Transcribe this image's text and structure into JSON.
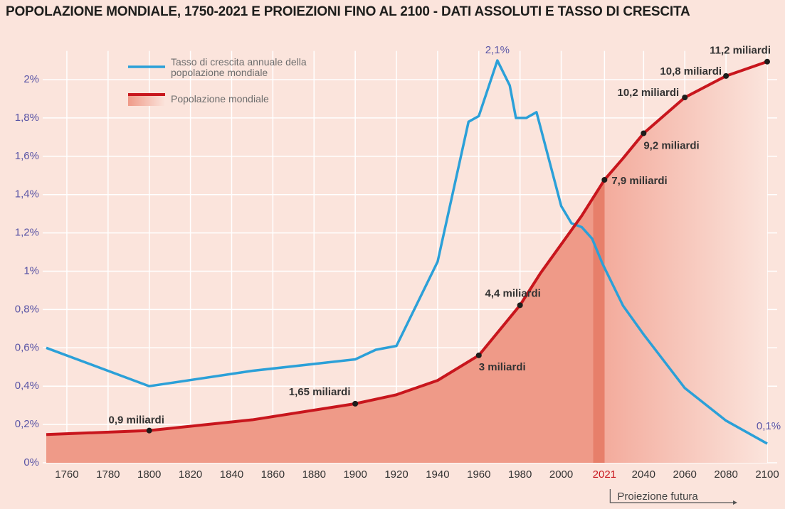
{
  "chart_data": {
    "type": "line",
    "title": "POPOLAZIONE MONDIALE, 1750-2021 E PROIEZIONI FINO AL 2100 - DATI ASSOLUTI E TASSO DI CRESCITA",
    "xlim": [
      1750,
      2100
    ],
    "xticks": [
      1760,
      1780,
      1800,
      1820,
      1840,
      1860,
      1880,
      1900,
      1920,
      1940,
      1960,
      1980,
      2000,
      2021,
      2040,
      2060,
      2080,
      2100
    ],
    "ylim": [
      0,
      2.15
    ],
    "yticks": [
      {
        "value": 0,
        "label": "0%"
      },
      {
        "value": 0.2,
        "label": "0,2%"
      },
      {
        "value": 0.4,
        "label": "0,4%"
      },
      {
        "value": 0.6,
        "label": "0,6%"
      },
      {
        "value": 0.8,
        "label": "0,8%"
      },
      {
        "value": 1,
        "label": "1%"
      },
      {
        "value": 1.2,
        "label": "1,2%"
      },
      {
        "value": 1.4,
        "label": "1,4%"
      },
      {
        "value": 1.6,
        "label": "1,6%"
      },
      {
        "value": 1.8,
        "label": "1,8%"
      },
      {
        "value": 2,
        "label": "2%"
      }
    ],
    "y2lim": [
      0,
      11.5
    ],
    "grid": true,
    "legend": "top-left",
    "projection": {
      "label": "Proiezione futura",
      "from": 2021
    },
    "series": [
      {
        "name": "Tasso di crescita annuale della popolazione mondiale",
        "color": "#2ba0d8",
        "x": [
          1750,
          1800,
          1850,
          1900,
          1910,
          1920,
          1940,
          1955,
          1960,
          1969,
          1975,
          1978,
          1983,
          1988,
          2000,
          2005,
          2010,
          2015,
          2020,
          2030,
          2040,
          2060,
          2080,
          2100
        ],
        "values": [
          0.6,
          0.4,
          0.48,
          0.54,
          0.59,
          0.61,
          1.05,
          1.78,
          1.81,
          2.1,
          1.97,
          1.8,
          1.8,
          1.83,
          1.34,
          1.25,
          1.23,
          1.17,
          1.04,
          0.82,
          0.67,
          0.39,
          0.22,
          0.1
        ],
        "value_labels": [
          null,
          null,
          null,
          null,
          null,
          null,
          null,
          null,
          null,
          "2,1%",
          null,
          null,
          null,
          null,
          null,
          null,
          null,
          null,
          null,
          null,
          null,
          null,
          null,
          "0,1%"
        ]
      },
      {
        "name": "Popolazione mondiale",
        "color": "#c8161d",
        "fill": "#ef9a88",
        "axis": "y2",
        "x": [
          1750,
          1800,
          1850,
          1900,
          1920,
          1940,
          1960,
          1970,
          1980,
          1990,
          2000,
          2010,
          2021,
          2030,
          2040,
          2060,
          2080,
          2100
        ],
        "values": [
          0.79,
          0.9,
          1.2,
          1.65,
          1.9,
          2.3,
          3,
          3.7,
          4.4,
          5.3,
          6.1,
          6.9,
          7.9,
          8.5,
          9.2,
          10.2,
          10.8,
          11.2
        ],
        "value_labels": [
          null,
          "0,9 miliardi",
          null,
          "1,65 miliardi",
          null,
          null,
          "3 miliardi",
          null,
          "4,4 miliardi",
          null,
          null,
          null,
          "7,9 miliardi",
          null,
          "9,2 miliardi",
          "10,2 miliardi",
          "10,8 miliardi",
          "11,2 miliardi"
        ]
      }
    ]
  }
}
